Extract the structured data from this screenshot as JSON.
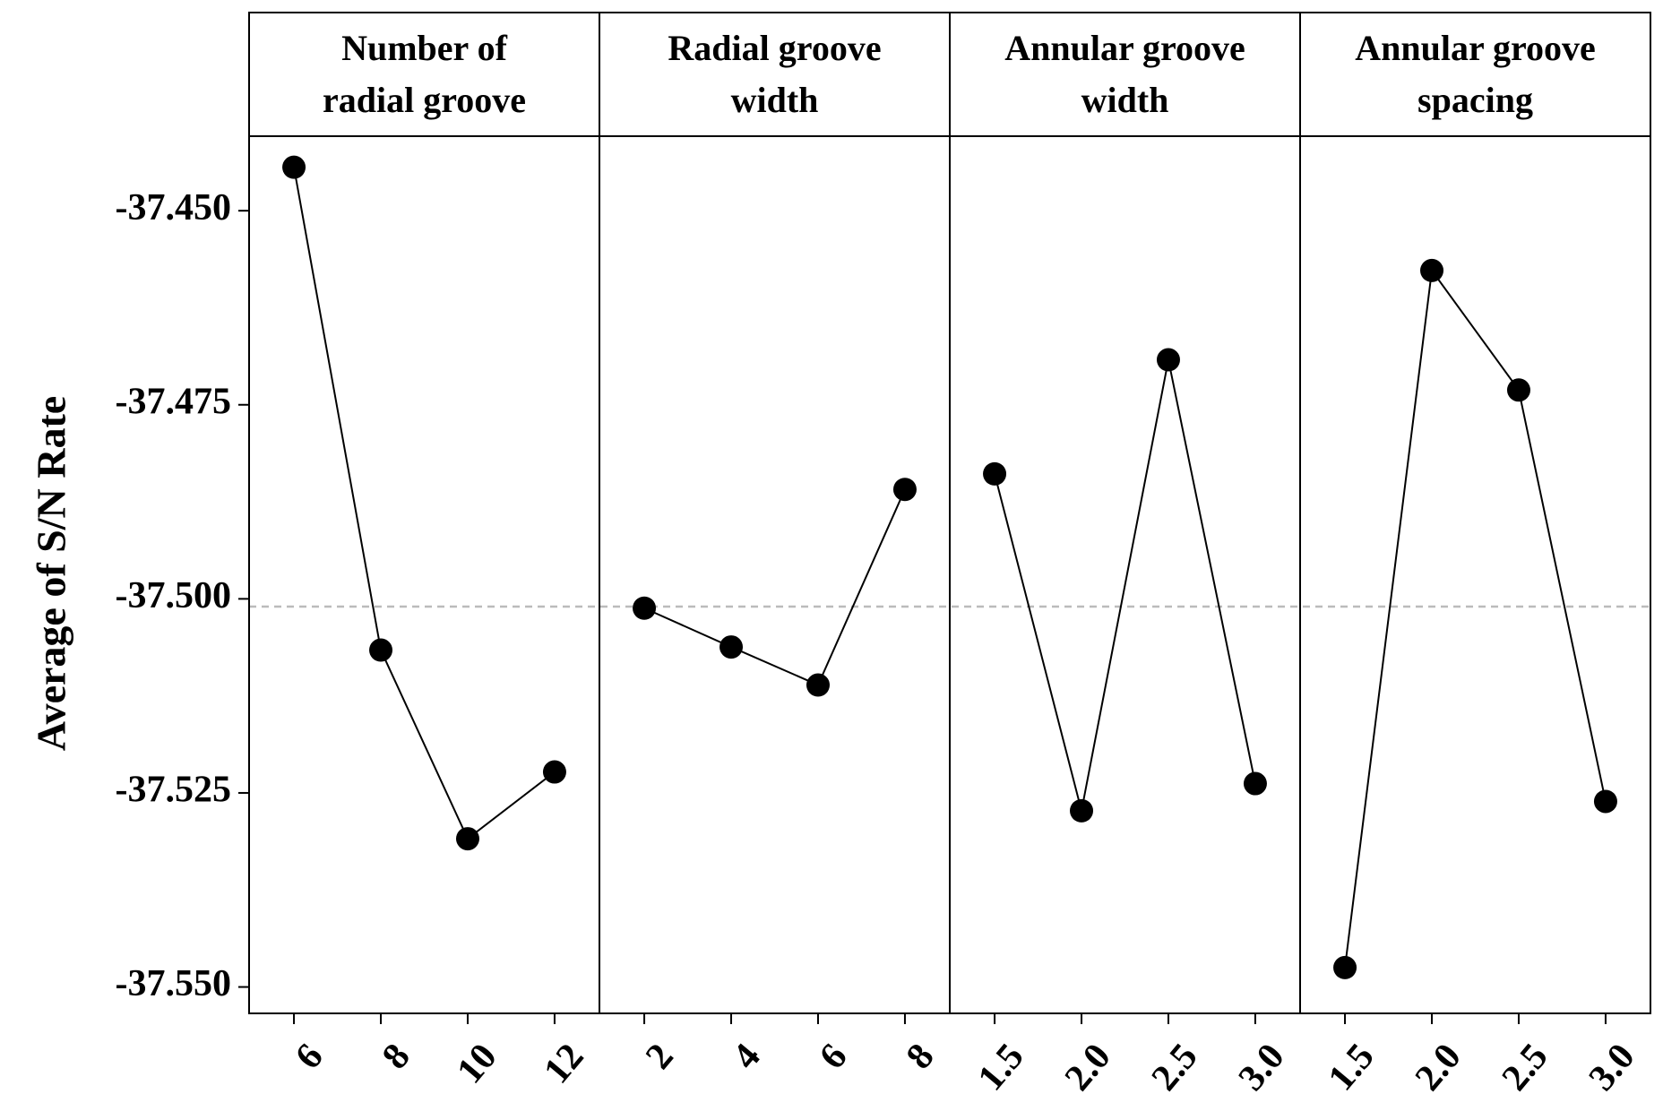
{
  "chart_data": {
    "type": "line",
    "y_label": "Average of  S/N Rate",
    "ylim": [
      -37.5534,
      -37.4404
    ],
    "yticks": [
      {
        "value": -37.45,
        "label": "-37.450"
      },
      {
        "value": -37.475,
        "label": "-37.475"
      },
      {
        "value": -37.5,
        "label": "-37.500"
      },
      {
        "value": -37.525,
        "label": "-37.525"
      },
      {
        "value": -37.55,
        "label": "-37.550"
      }
    ],
    "reference_line": -37.501,
    "color": "#000000",
    "panels": [
      {
        "title": [
          "Number of",
          "radial groove"
        ],
        "categories": [
          "6",
          "8",
          "10",
          "12"
        ],
        "values": [
          -37.4444,
          -37.5066,
          -37.5309,
          -37.5223
        ]
      },
      {
        "title": [
          "Radial groove",
          "width"
        ],
        "categories": [
          "2",
          "4",
          "6",
          "8"
        ],
        "values": [
          -37.5012,
          -37.5062,
          -37.5111,
          -37.4859
        ]
      },
      {
        "title": [
          "Annular groove",
          "width"
        ],
        "categories": [
          "1.5",
          "2.0",
          "2.5",
          "3.0"
        ],
        "values": [
          -37.4839,
          -37.5273,
          -37.4692,
          -37.5238
        ]
      },
      {
        "title": [
          "Annular groove",
          "spacing"
        ],
        "categories": [
          "1.5",
          "2.0",
          "2.5",
          "3.0"
        ],
        "values": [
          -37.5475,
          -37.4577,
          -37.4731,
          -37.5261
        ]
      }
    ]
  }
}
